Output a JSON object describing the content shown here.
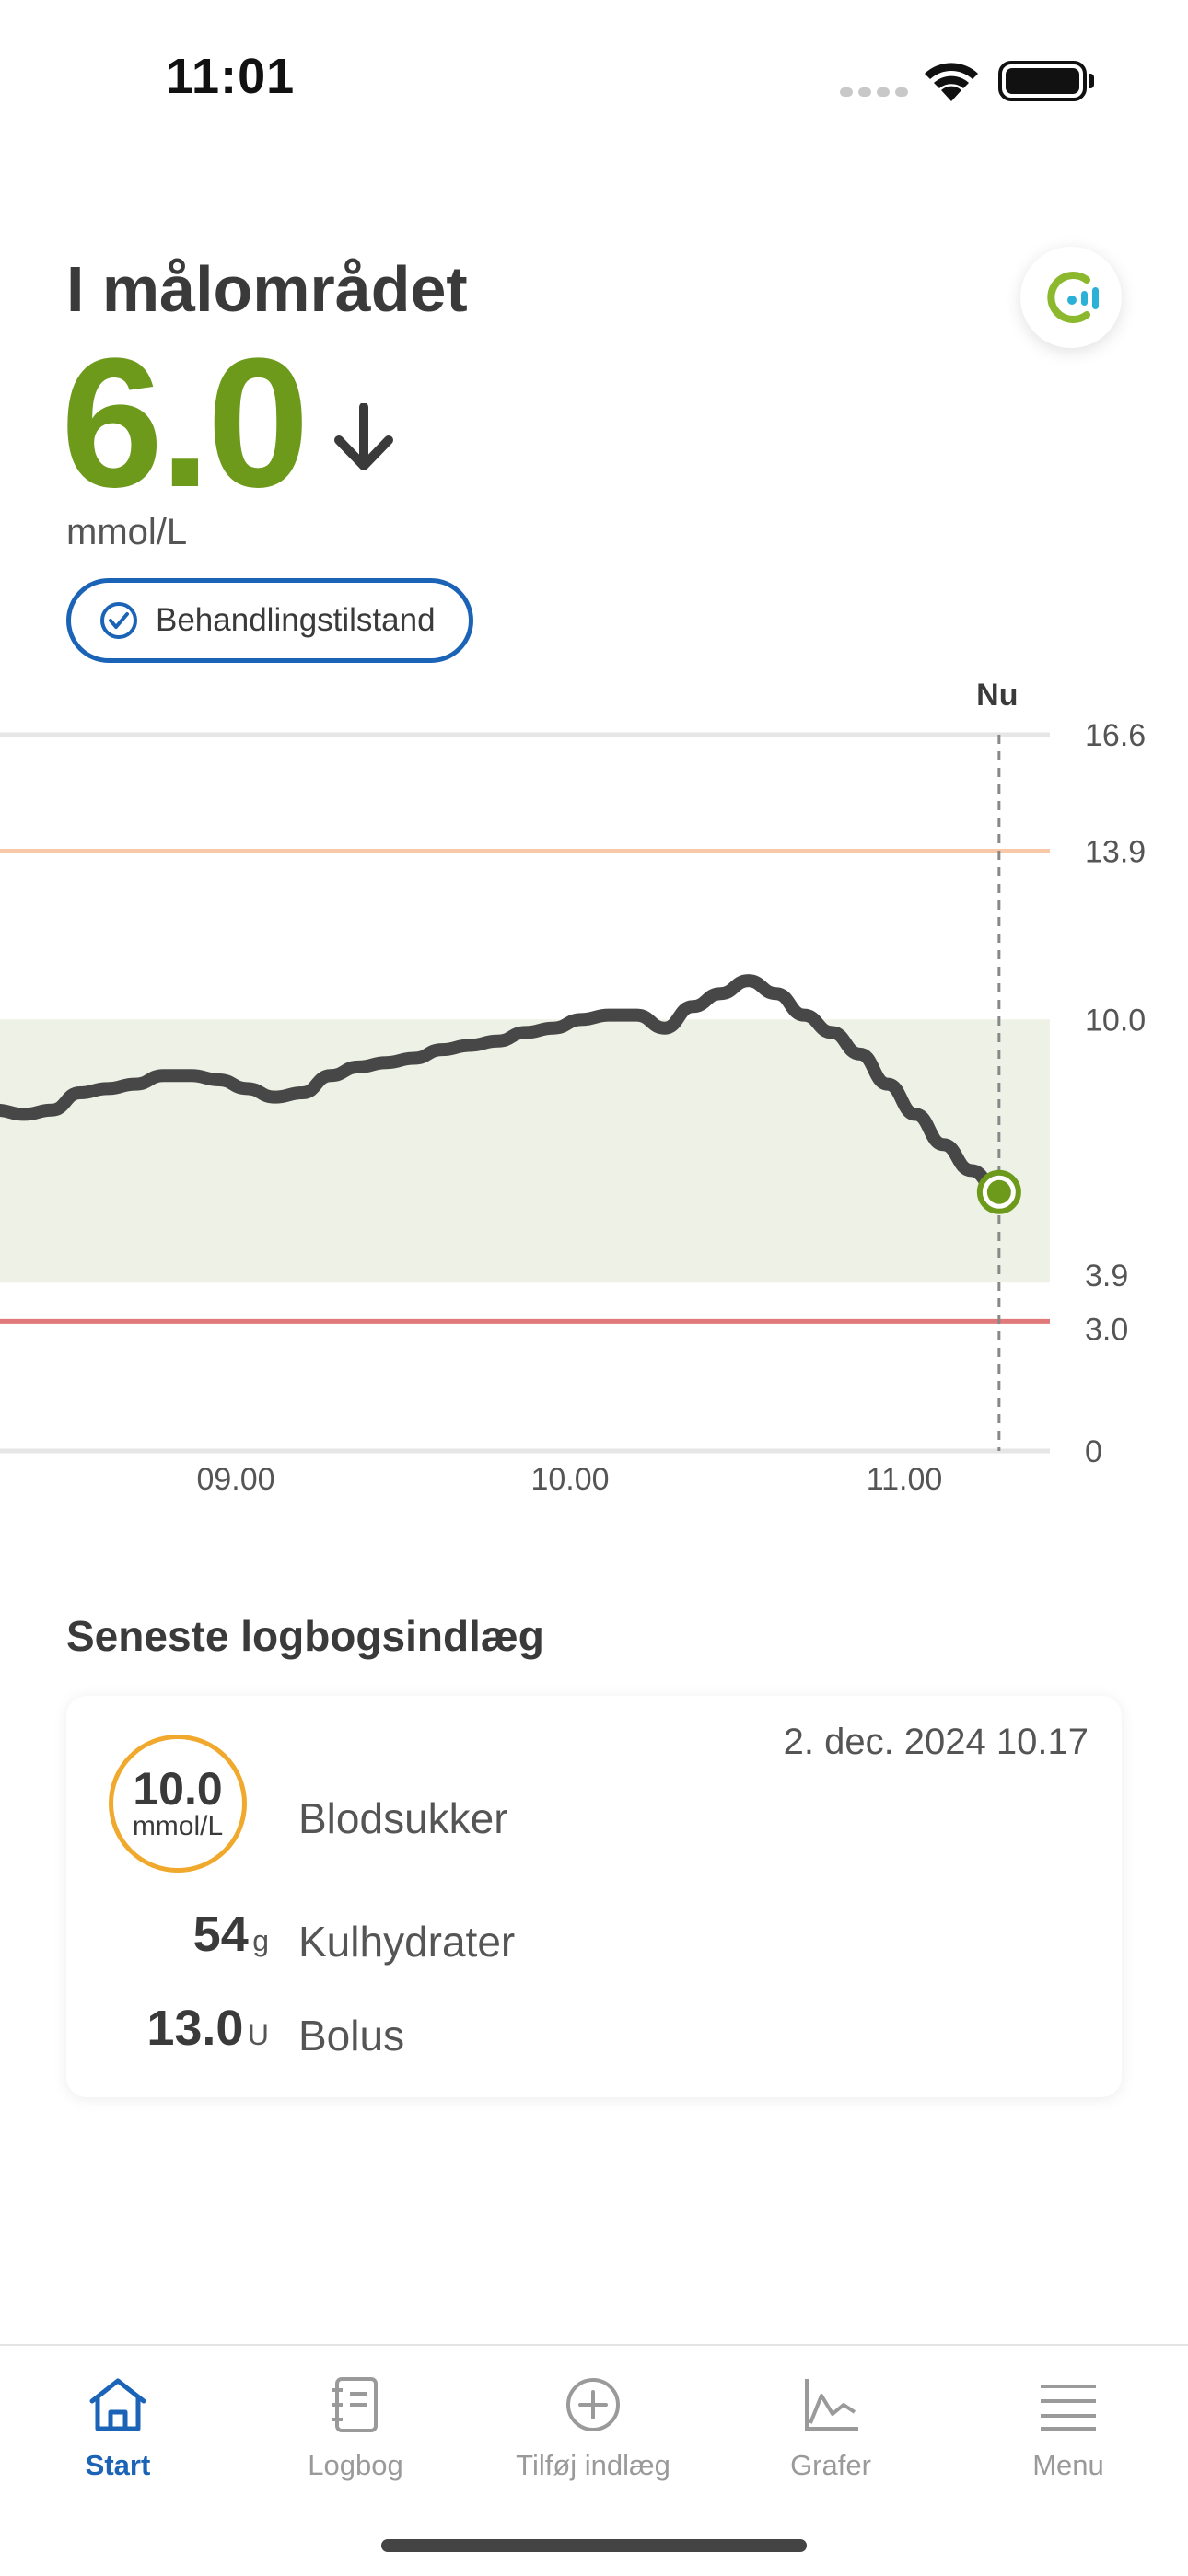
{
  "status_bar": {
    "time": "11:01"
  },
  "header": {
    "status_label": "I målområdet",
    "glucose_value": "6.0",
    "unit": "mmol/L",
    "treatment_label": "Behandlingstilstand"
  },
  "colors": {
    "in_range": "#6e9a1c",
    "accent_blue": "#1a63b6",
    "high_line": "#f8c9a8",
    "low_line": "#e07a7a",
    "target_band": "#eef2e6",
    "curve": "#474747",
    "bg_circle": "#f0a92c"
  },
  "chart_data": {
    "type": "line",
    "now_label": "Nu",
    "y_ticks": [
      "16.6",
      "13.9",
      "10.0",
      "3.9",
      "3.0",
      "0"
    ],
    "ylim": [
      0,
      16.6
    ],
    "target_range": [
      3.9,
      10.0
    ],
    "high_threshold": 13.9,
    "low_threshold": 3.0,
    "x_ticks": [
      "09.00",
      "10.00",
      "11.00"
    ],
    "series": [
      {
        "x": [
          "08.17",
          "08.22",
          "08.27",
          "08.32",
          "08.37",
          "08.42",
          "08.47",
          "08.52",
          "08.57",
          "09.02",
          "09.07",
          "09.12",
          "09.17",
          "09.22",
          "09.27",
          "09.32",
          "09.37",
          "09.42",
          "09.47",
          "09.52",
          "09.57",
          "10.02",
          "10.07",
          "10.12",
          "10.17",
          "10.22",
          "10.27",
          "10.32",
          "10.37",
          "10.42",
          "10.47",
          "10.52",
          "10.57",
          "11.02",
          "11.07",
          "11.12",
          "11.17"
        ],
        "values": [
          7.9,
          7.8,
          7.9,
          8.3,
          8.4,
          8.5,
          8.7,
          8.7,
          8.6,
          8.4,
          8.2,
          8.3,
          8.7,
          8.9,
          9.0,
          9.1,
          9.3,
          9.4,
          9.5,
          9.7,
          9.8,
          10.0,
          10.1,
          10.1,
          9.8,
          10.3,
          10.6,
          10.9,
          10.6,
          10.1,
          9.7,
          9.2,
          8.5,
          7.8,
          7.1,
          6.5,
          6.0
        ]
      }
    ]
  },
  "log": {
    "section_title": "Seneste logbogsindlæg",
    "date": "2. dec. 2024 10.17",
    "blood_sugar": {
      "value": "10.0",
      "unit": "mmol/L",
      "label": "Blodsukker"
    },
    "carbs": {
      "value": "54",
      "unit": "g",
      "label": "Kulhydrater"
    },
    "bolus": {
      "value": "13.0",
      "unit": "U",
      "label": "Bolus"
    }
  },
  "tabs": [
    {
      "label": "Start",
      "icon": "home-icon",
      "active": true
    },
    {
      "label": "Logbog",
      "icon": "logbook-icon",
      "active": false
    },
    {
      "label": "Tilføj indlæg",
      "icon": "add-circle-icon",
      "active": false
    },
    {
      "label": "Grafer",
      "icon": "chart-icon",
      "active": false
    },
    {
      "label": "Menu",
      "icon": "menu-icon",
      "active": false
    }
  ]
}
